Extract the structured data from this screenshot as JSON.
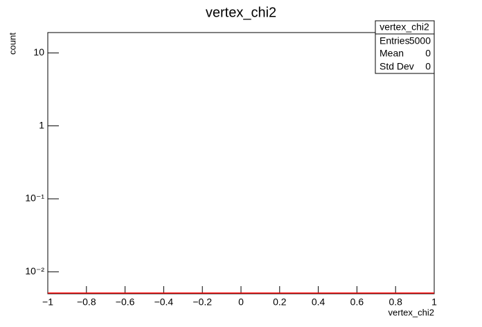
{
  "chart_data": {
    "type": "histogram",
    "title": "vertex_chi2",
    "xlabel": "vertex_chi2",
    "ylabel": "count",
    "bins": [
      -1,
      1
    ],
    "values": [
      0
    ],
    "color": "#ff0000",
    "xlim": [
      -1,
      1
    ],
    "xticks": [
      {
        "value": -1,
        "label": "−1"
      },
      {
        "value": -0.8,
        "label": "−0.8"
      },
      {
        "value": -0.6,
        "label": "−0.6"
      },
      {
        "value": -0.4,
        "label": "−0.4"
      },
      {
        "value": -0.2,
        "label": "−0.2"
      },
      0,
      0.2,
      0.4,
      0.6,
      0.8,
      1
    ],
    "ylim": [
      0.005,
      19
    ],
    "log_y": true,
    "yticks": [
      {
        "value": 0.01,
        "label": "10⁻²"
      },
      {
        "value": 0.1,
        "label": "10⁻¹"
      },
      1,
      10
    ],
    "stats": {
      "title": "vertex_chi2",
      "rows": [
        [
          "Entries",
          5000
        ],
        [
          "Mean",
          0
        ],
        [
          "Std Dev",
          0
        ]
      ]
    }
  }
}
